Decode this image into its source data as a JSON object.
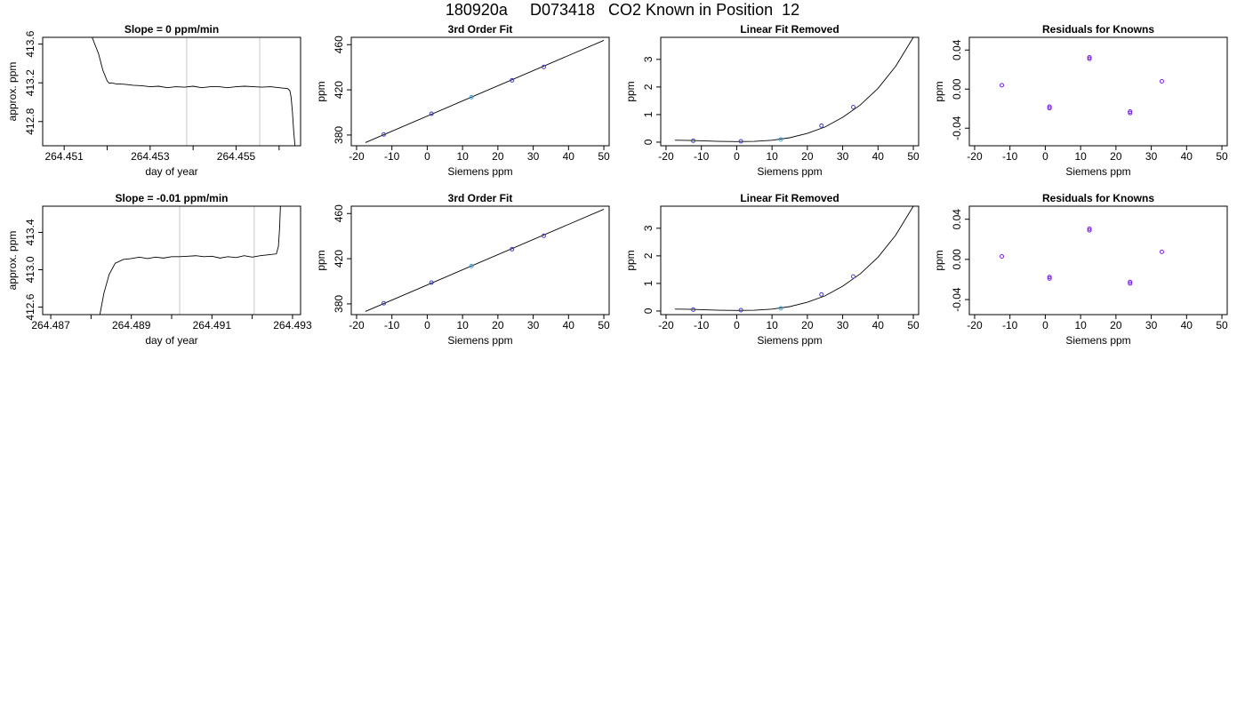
{
  "page": {
    "title": "180920a     D073418   CO2 Known in Position  12"
  },
  "chart_data": [
    {
      "type": "line",
      "title": "Slope =  0  ppm/min",
      "xlabel": "day of year",
      "ylabel": "approx. ppm",
      "xlim": [
        264.4505,
        264.4565
      ],
      "ylim": [
        412.55,
        413.67
      ],
      "xticks": [
        264.451,
        264.452,
        264.453,
        264.454,
        264.455,
        264.456
      ],
      "xticklabels": [
        "264.451",
        "",
        "264.453",
        "",
        "264.455",
        ""
      ],
      "yticks": [
        412.8,
        413.2,
        413.6
      ],
      "yticklabels": [
        "412.8",
        "413.2",
        "413.6"
      ],
      "vlines": [
        264.45385,
        264.45555
      ],
      "series": [
        {
          "x": [
            264.45165,
            264.4518,
            264.4519,
            264.452,
            264.45205,
            264.4521,
            264.4522,
            264.4524,
            264.4526,
            264.4528,
            264.453,
            264.4532,
            264.4534,
            264.4536,
            264.4538,
            264.454,
            264.4542,
            264.4544,
            264.4546,
            264.4548,
            264.455,
            264.4552,
            264.4554,
            264.4556,
            264.4558,
            264.456,
            264.4562,
            264.45625,
            264.45628,
            264.45631,
            264.45634,
            264.45637
          ],
          "y": [
            413.67,
            413.5,
            413.33,
            413.22,
            413.195,
            413.2,
            413.19,
            413.185,
            413.175,
            413.17,
            413.16,
            413.165,
            413.15,
            413.16,
            413.155,
            413.165,
            413.15,
            413.16,
            413.16,
            413.15,
            413.16,
            413.165,
            413.16,
            413.155,
            413.16,
            413.15,
            413.14,
            413.12,
            413.05,
            412.9,
            412.7,
            412.55
          ]
        }
      ]
    },
    {
      "type": "line",
      "title": "3rd Order Fit",
      "xlabel": "Siemens ppm",
      "ylabel": "ppm",
      "xlim": [
        -21.5,
        51.5
      ],
      "ylim": [
        370.5,
        466.5
      ],
      "xticks": [
        -20,
        -10,
        0,
        10,
        20,
        30,
        40,
        50
      ],
      "yticks": [
        380,
        420,
        460
      ],
      "series": [
        {
          "x": [
            -17.5,
            50
          ],
          "y": [
            373.3,
            463.8
          ]
        }
      ],
      "points": {
        "x": [
          -12.3,
          1.2,
          12.5,
          24,
          33
        ],
        "y": [
          380.5,
          398.8,
          413.5,
          428.4,
          440.3
        ]
      }
    },
    {
      "type": "line",
      "title": "Linear Fit Removed",
      "xlabel": "Siemens ppm",
      "ylabel": "ppm",
      "xlim": [
        -21.5,
        51.5
      ],
      "ylim": [
        -0.13,
        3.8
      ],
      "xticks": [
        -20,
        -10,
        0,
        10,
        20,
        30,
        40,
        50
      ],
      "yticks": [
        0,
        1,
        2,
        3
      ],
      "series": [
        {
          "x": [
            -17.5,
            -12.5,
            -10,
            -5,
            0,
            5,
            10,
            15,
            20,
            25,
            30,
            35,
            40,
            45,
            50
          ],
          "y": [
            0.07,
            0.06,
            0.05,
            0.03,
            0.02,
            0.03,
            0.07,
            0.16,
            0.32,
            0.55,
            0.9,
            1.35,
            1.95,
            2.75,
            3.8
          ]
        }
      ],
      "points": {
        "x": [
          -12.3,
          1.2,
          12.5,
          24,
          33
        ],
        "y": [
          0.05,
          0.03,
          0.1,
          0.6,
          1.27
        ]
      }
    },
    {
      "type": "scatter",
      "title": "Residuals for Knowns",
      "xlabel": "Siemens ppm",
      "ylabel": "ppm",
      "xlim": [
        -21.5,
        51.5
      ],
      "ylim": [
        -0.058,
        0.053
      ],
      "xticks": [
        -20,
        -10,
        0,
        10,
        20,
        30,
        40,
        50
      ],
      "yticks": [
        -0.04,
        0,
        0.04
      ],
      "yticklabels": [
        "-0.04",
        "0.00",
        "0.04"
      ],
      "points": {
        "x": [
          -12.3,
          1.2,
          1.2,
          12.5,
          12.5,
          24,
          24,
          33
        ],
        "y": [
          0.004,
          -0.018,
          -0.0195,
          0.031,
          0.0325,
          -0.023,
          -0.0245,
          0.008
        ]
      }
    },
    {
      "type": "line",
      "title": "Slope =  -0.01  ppm/min",
      "xlabel": "day of year",
      "ylabel": "approx. ppm",
      "xlim": [
        264.4868,
        264.4932
      ],
      "ylim": [
        412.52,
        413.68
      ],
      "xticks": [
        264.487,
        264.488,
        264.489,
        264.49,
        264.491,
        264.492,
        264.493
      ],
      "xticklabels": [
        "264.487",
        "",
        "264.489",
        "",
        "264.491",
        "",
        "264.493"
      ],
      "yticks": [
        412.6,
        413.0,
        413.4
      ],
      "yticklabels": [
        "412.6",
        "413.0",
        "413.4"
      ],
      "vlines": [
        264.4902,
        264.49205
      ],
      "series": [
        {
          "x": [
            264.48822,
            264.48832,
            264.48845,
            264.4886,
            264.4888,
            264.489,
            264.4892,
            264.4894,
            264.4896,
            264.4898,
            264.49,
            264.4902,
            264.4904,
            264.4906,
            264.4908,
            264.491,
            264.4912,
            264.4914,
            264.4916,
            264.4918,
            264.492,
            264.4922,
            264.4924,
            264.4926,
            264.49265,
            264.49268,
            264.4927
          ],
          "y": [
            412.52,
            412.75,
            412.95,
            413.07,
            413.11,
            413.12,
            413.135,
            413.12,
            413.135,
            413.125,
            413.14,
            413.14,
            413.145,
            413.15,
            413.14,
            413.145,
            413.125,
            413.14,
            413.13,
            413.15,
            413.135,
            413.15,
            413.16,
            413.17,
            413.25,
            413.45,
            413.68
          ]
        }
      ]
    },
    {
      "type": "line",
      "title": "3rd Order Fit",
      "xlabel": "Siemens ppm",
      "ylabel": "ppm",
      "xlim": [
        -21.5,
        51.5
      ],
      "ylim": [
        370.5,
        466.5
      ],
      "xticks": [
        -20,
        -10,
        0,
        10,
        20,
        30,
        40,
        50
      ],
      "yticks": [
        380,
        420,
        460
      ],
      "series": [
        {
          "x": [
            -17.5,
            50
          ],
          "y": [
            373.3,
            463.8
          ]
        }
      ],
      "points": {
        "x": [
          -12.3,
          1.2,
          12.5,
          24,
          33
        ],
        "y": [
          380.5,
          398.8,
          413.5,
          428.4,
          440.3
        ]
      }
    },
    {
      "type": "line",
      "title": "Linear Fit Removed",
      "xlabel": "Siemens ppm",
      "ylabel": "ppm",
      "xlim": [
        -21.5,
        51.5
      ],
      "ylim": [
        -0.13,
        3.8
      ],
      "xticks": [
        -20,
        -10,
        0,
        10,
        20,
        30,
        40,
        50
      ],
      "yticks": [
        0,
        1,
        2,
        3
      ],
      "series": [
        {
          "x": [
            -17.5,
            -12.5,
            -10,
            -5,
            0,
            5,
            10,
            15,
            20,
            25,
            30,
            35,
            40,
            45,
            50
          ],
          "y": [
            0.07,
            0.06,
            0.05,
            0.03,
            0.02,
            0.03,
            0.07,
            0.16,
            0.32,
            0.55,
            0.9,
            1.35,
            1.95,
            2.75,
            3.8
          ]
        }
      ],
      "points": {
        "x": [
          -12.3,
          1.2,
          12.5,
          24,
          33
        ],
        "y": [
          0.05,
          0.03,
          0.1,
          0.6,
          1.25
        ]
      }
    },
    {
      "type": "scatter",
      "title": "Residuals for Knowns",
      "xlabel": "Siemens ppm",
      "ylabel": "ppm",
      "xlim": [
        -21.5,
        51.5
      ],
      "ylim": [
        -0.055,
        0.053
      ],
      "xticks": [
        -20,
        -10,
        0,
        10,
        20,
        30,
        40,
        50
      ],
      "yticks": [
        -0.04,
        0,
        0.04
      ],
      "yticklabels": [
        "-0.04",
        "0.00",
        "0.04"
      ],
      "points": {
        "x": [
          -12.3,
          1.2,
          1.2,
          12.5,
          12.5,
          24,
          24,
          33
        ],
        "y": [
          0.003,
          -0.0175,
          -0.019,
          0.029,
          0.0305,
          -0.0225,
          -0.024,
          0.0075
        ]
      }
    }
  ]
}
